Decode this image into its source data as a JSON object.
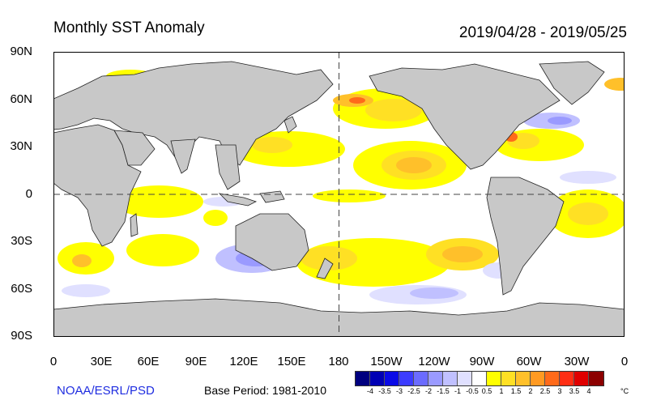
{
  "title": "Monthly SST Anomaly",
  "date_range": "2019/04/28 - 2019/05/25",
  "credit": "NOAA/ESRL/PSD",
  "base_period": "Base Period: 1981-2010",
  "map": {
    "latitude_labels": [
      "90N",
      "60N",
      "30N",
      "0",
      "30S",
      "60S",
      "90S"
    ],
    "longitude_labels": [
      "0",
      "30E",
      "60E",
      "90E",
      "120E",
      "150E",
      "180",
      "150W",
      "120W",
      "90W",
      "60W",
      "30W",
      "0"
    ],
    "colors": {
      "land": "#c8c8c8",
      "ocean": "#ffffff",
      "coast": "#222222"
    }
  },
  "colorbar": {
    "unit": "°C",
    "tick_labels": [
      "-4",
      "-3.5",
      "-3",
      "-2.5",
      "-2",
      "-1.5",
      "-1",
      "-0.5",
      "0.5",
      "1",
      "1.5",
      "2",
      "2.5",
      "3",
      "3.5",
      "4"
    ],
    "colors": [
      "#00007f",
      "#0000b4",
      "#0a0ae6",
      "#3c3cff",
      "#6b6bff",
      "#9a9aff",
      "#c0c0ff",
      "#e0e0ff",
      "#ffffff",
      "#ffff00",
      "#ffe024",
      "#ffc02a",
      "#ff9a22",
      "#ff6a1a",
      "#ff2e14",
      "#e00000",
      "#8c0000"
    ]
  }
}
